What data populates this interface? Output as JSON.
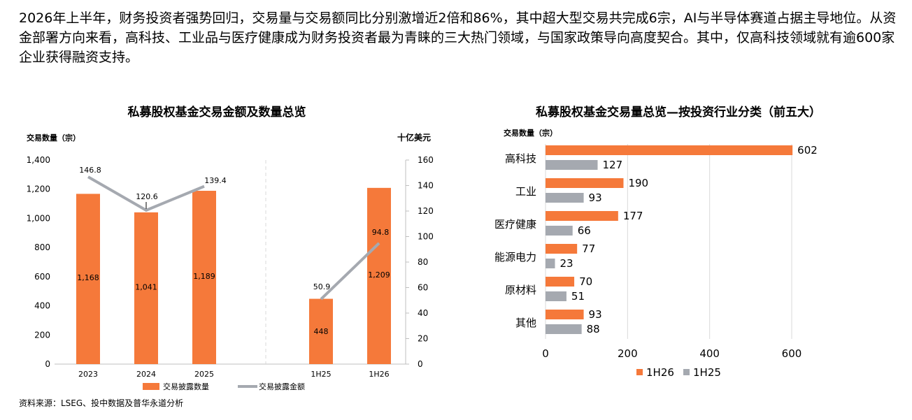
{
  "intro": "2026年上半年，财务投资者强势回归，交易量与交易额同比分别激增近2倍和86%，其中超大型交易共完成6宗，AI与半导体赛道占据主导地位。从资金部署方向来看，高科技、工业品与医疗健康成为财务投资者最为青睐的三大热门领域，与国家政策导向高度契合。其中，仅高科技领域就有逾600家企业获得融资支持。",
  "source": "资料来源：LSEG、投中数据及普华永道分析",
  "colors": {
    "orange": "#F5793A",
    "gray": "#A5A9B0",
    "axis": "#BFBFBF"
  },
  "chart_data": [
    {
      "type": "bar",
      "title": "私募股权基金交易金额及数量总览",
      "ylabel": "交易数量（宗）",
      "y2label": "十亿美元",
      "ylim": [
        0,
        1400
      ],
      "y2lim": [
        0,
        160
      ],
      "yticks": [
        "0",
        "200",
        "400",
        "600",
        "800",
        "1,000",
        "1,200",
        "1,400"
      ],
      "y2ticks": [
        "0",
        "20",
        "40",
        "60",
        "80",
        "100",
        "120",
        "140",
        "160"
      ],
      "categories": [
        "2023",
        "2024",
        "2025",
        "1H25",
        "1H26"
      ],
      "series": [
        {
          "name": "交易披露数量",
          "type": "bar",
          "values": [
            1168,
            1041,
            1189,
            448,
            1209
          ],
          "labels": [
            "1,168",
            "1,041",
            "1,189",
            "448",
            "1,209"
          ]
        },
        {
          "name": "交易披露金额",
          "type": "line",
          "axis": "right",
          "values": [
            146.8,
            120.6,
            139.4,
            50.9,
            94.8
          ],
          "labels": [
            "146.8",
            "120.6",
            "139.4",
            "50.9",
            "94.8"
          ]
        }
      ],
      "legend": "bottom"
    },
    {
      "type": "bar",
      "orientation": "horizontal",
      "title": "私募股权基金交易量总览—按投资行业分类（前五大）",
      "ylabel": "交易数量（宗）",
      "xlim": [
        0,
        600
      ],
      "xticks": [
        "0",
        "200",
        "400",
        "600"
      ],
      "categories": [
        "高科技",
        "工业",
        "医疗健康",
        "能源电力",
        "原材料",
        "其他"
      ],
      "series": [
        {
          "name": "1H26",
          "values": [
            602,
            190,
            177,
            77,
            70,
            93
          ]
        },
        {
          "name": "1H25",
          "values": [
            127,
            93,
            66,
            23,
            51,
            88
          ]
        }
      ],
      "grid": true,
      "legend": "bottom"
    }
  ]
}
